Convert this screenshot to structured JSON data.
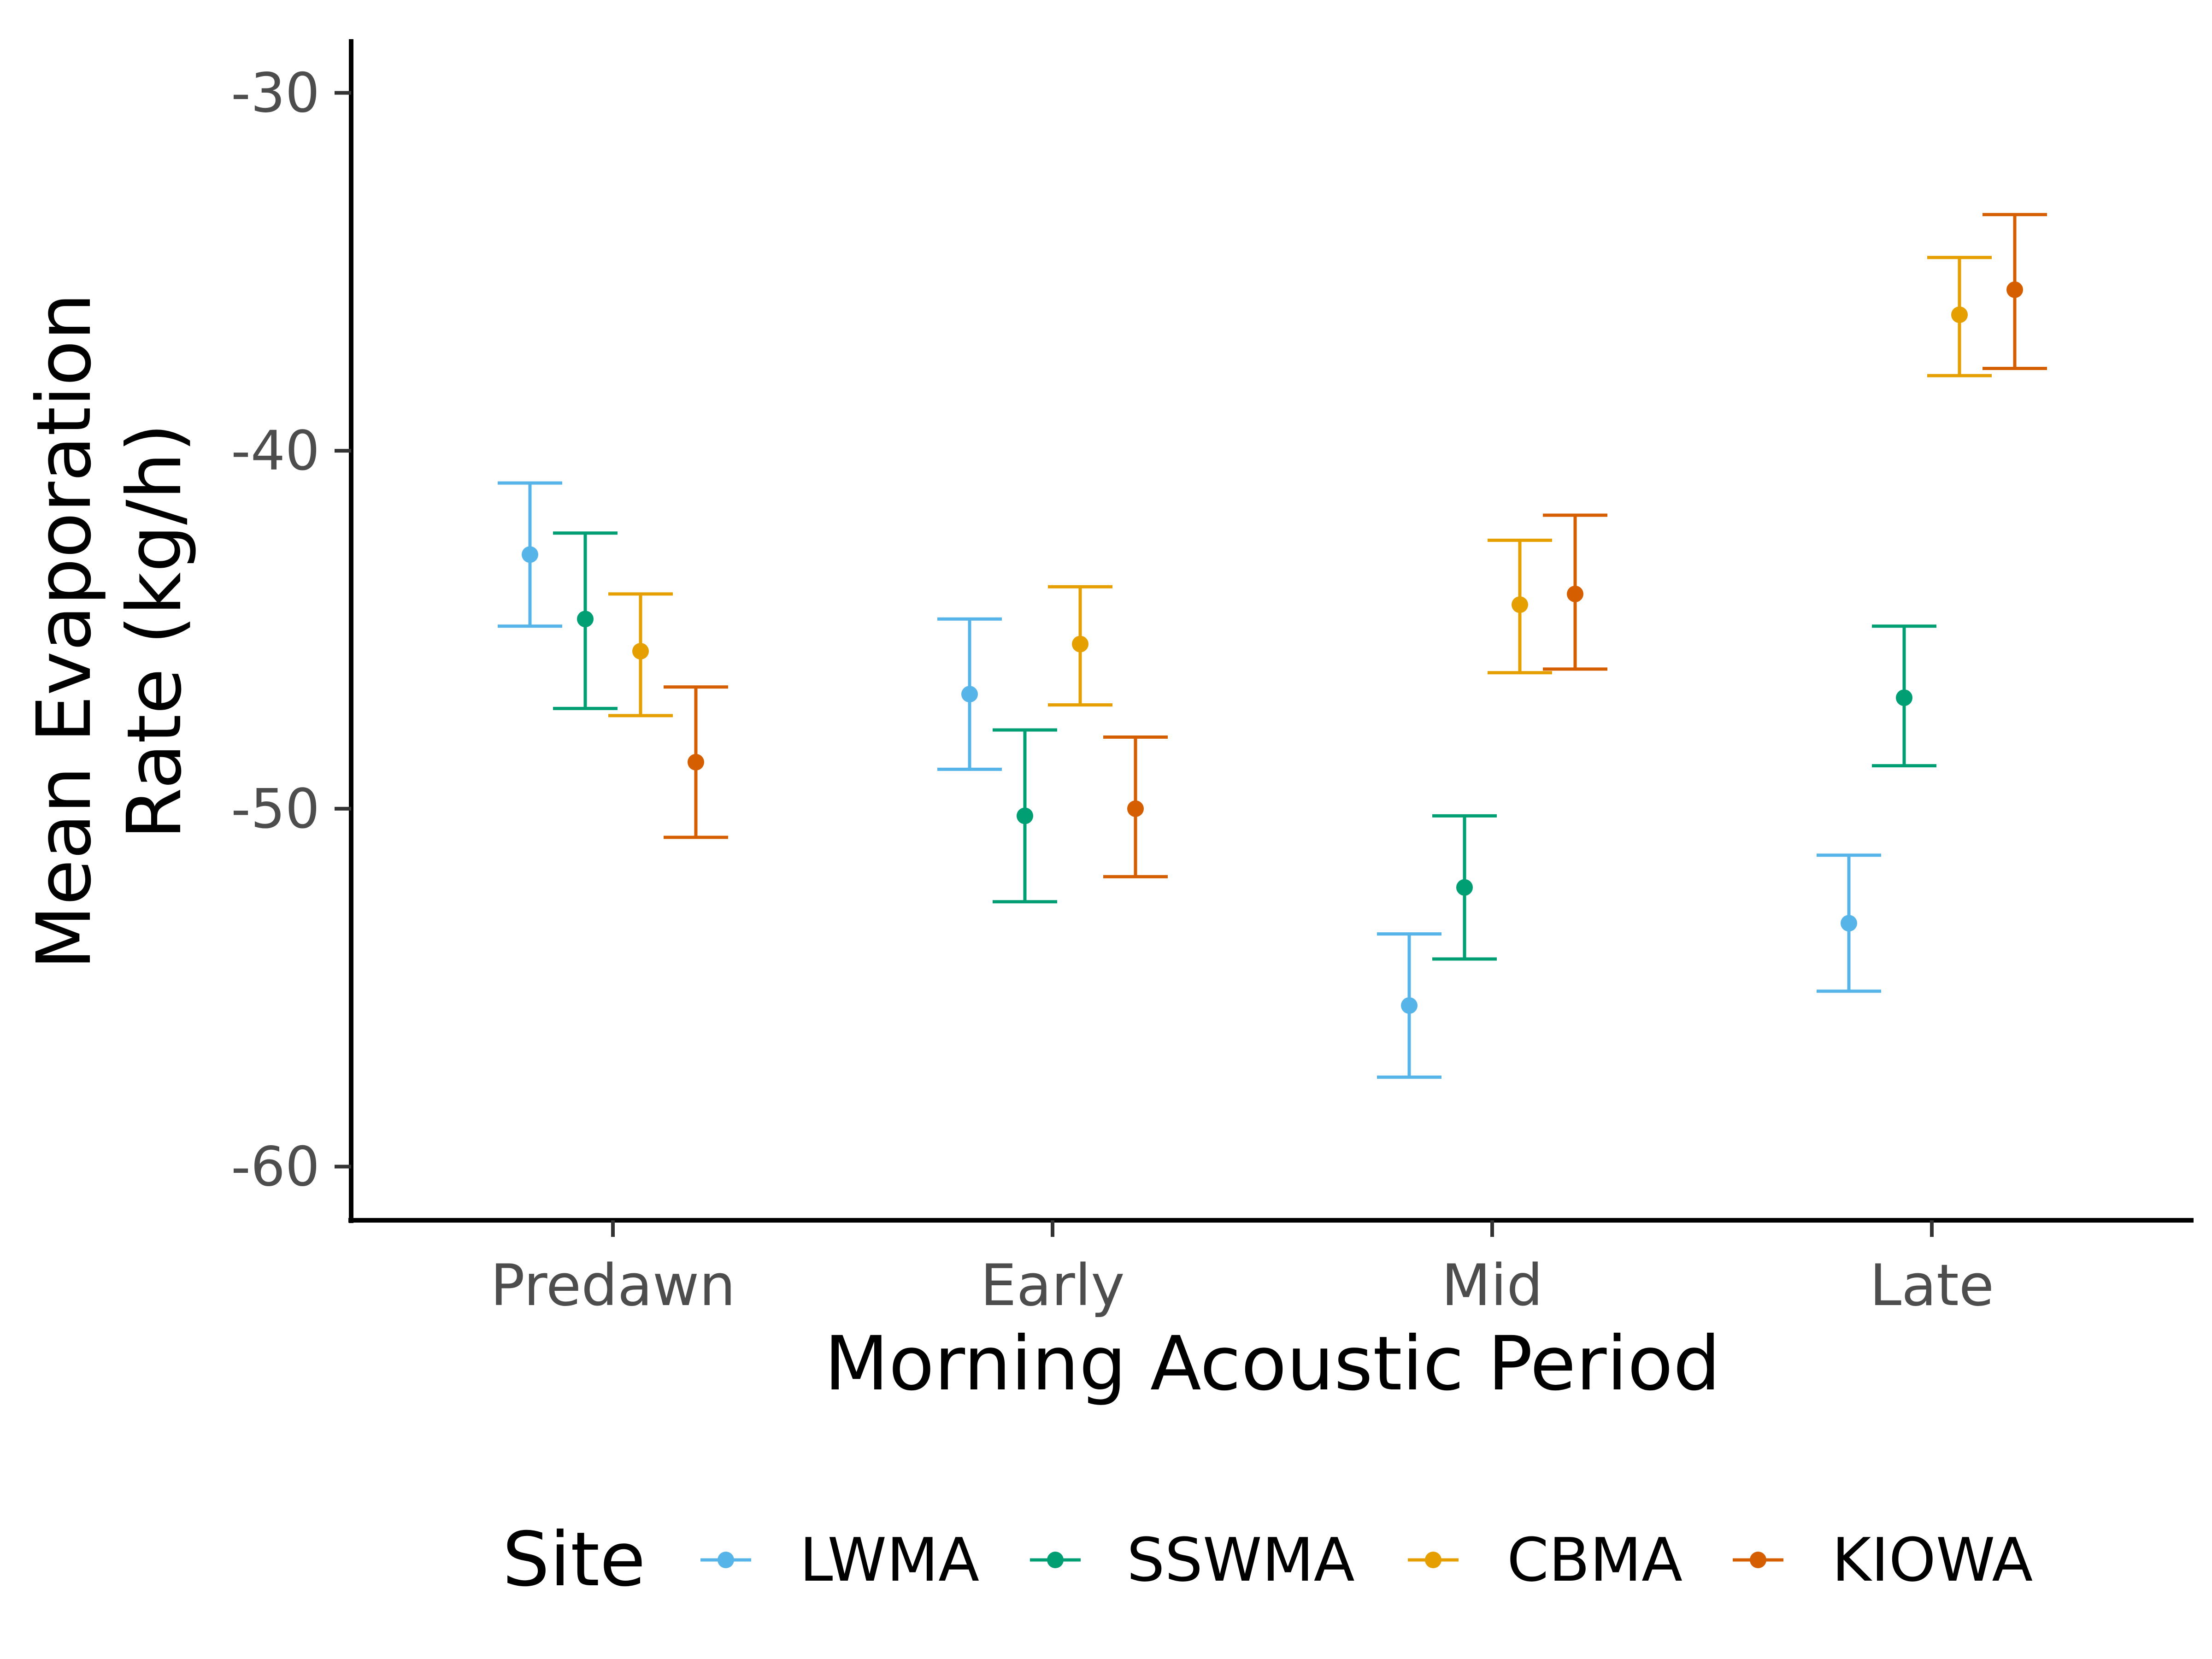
{
  "chart_data": {
    "type": "scatter",
    "subtype": "point-with-error-bars",
    "categories": [
      "Predawn",
      "Early",
      "Mid",
      "Late"
    ],
    "xlabel": "Morning Acoustic Period",
    "ylabel_lines": [
      "Mean Evaporation",
      "Rate (kg/h)"
    ],
    "ylim": [
      -61.5,
      -28.5
    ],
    "yticks": [
      -30,
      -40,
      -50,
      -60
    ],
    "ytick_labels": [
      "-30",
      "-40",
      "-50",
      "-60"
    ],
    "grid": false,
    "legend": {
      "title": "Site",
      "position": "bottom",
      "entries": [
        "LWMA",
        "SSWMA",
        "CBMA",
        "KIOWA"
      ]
    },
    "series": [
      {
        "name": "LWMA",
        "color": "#56B4E9",
        "values": [
          -42.9,
          -46.8,
          -55.5,
          -53.2
        ],
        "lower": [
          -44.9,
          -48.9,
          -57.5,
          -55.1
        ],
        "upper": [
          -40.9,
          -44.7,
          -53.5,
          -51.3
        ]
      },
      {
        "name": "SSWMA",
        "color": "#009E73",
        "values": [
          -44.7,
          -50.2,
          -52.2,
          -46.9
        ],
        "lower": [
          -47.2,
          -52.6,
          -54.2,
          -48.8
        ],
        "upper": [
          -42.3,
          -47.8,
          -50.2,
          -44.9
        ]
      },
      {
        "name": "CBMA",
        "color": "#E69F00",
        "values": [
          -45.6,
          -45.4,
          -44.3,
          -36.2
        ],
        "lower": [
          -47.4,
          -47.1,
          -46.2,
          -37.9
        ],
        "upper": [
          -44.0,
          -43.8,
          -42.5,
          -34.6
        ]
      },
      {
        "name": "KIOWA",
        "color": "#D55E00",
        "values": [
          -48.7,
          -50.0,
          -44.0,
          -35.5
        ],
        "lower": [
          -50.8,
          -51.9,
          -46.1,
          -37.7
        ],
        "upper": [
          -46.6,
          -48.0,
          -41.8,
          -33.4
        ]
      }
    ]
  }
}
